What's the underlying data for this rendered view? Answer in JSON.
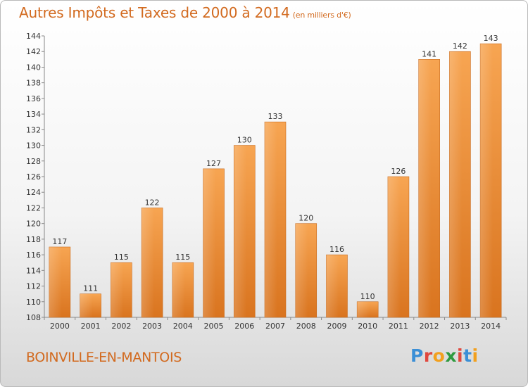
{
  "chart_data": {
    "type": "bar",
    "title": "Autres Impôts et Taxes de 2000 à 2014",
    "subtitle": "(en milliers d'€)",
    "categories": [
      "2000",
      "2001",
      "2002",
      "2003",
      "2004",
      "2005",
      "2006",
      "2007",
      "2008",
      "2009",
      "2010",
      "2011",
      "2012",
      "2013",
      "2014"
    ],
    "values": [
      117,
      111,
      115,
      122,
      115,
      127,
      130,
      133,
      120,
      116,
      110,
      126,
      141,
      142,
      143
    ],
    "ylim": [
      108,
      144
    ],
    "yticks": [
      108,
      110,
      112,
      114,
      116,
      118,
      120,
      122,
      124,
      126,
      128,
      130,
      132,
      134,
      136,
      138,
      140,
      142,
      144
    ],
    "grid": false,
    "bar_color": "#f5a04a",
    "bar_color_dark": "#d9741f"
  },
  "footer": {
    "place": "BOINVILLE-EN-MANTOIS",
    "logo": "Proxiti"
  },
  "logo_colors": [
    "#3b8fd6",
    "#e0483e",
    "#f2a01e",
    "#2f9a3f",
    "#e0483e",
    "#3b8fd6",
    "#f2a01e"
  ]
}
